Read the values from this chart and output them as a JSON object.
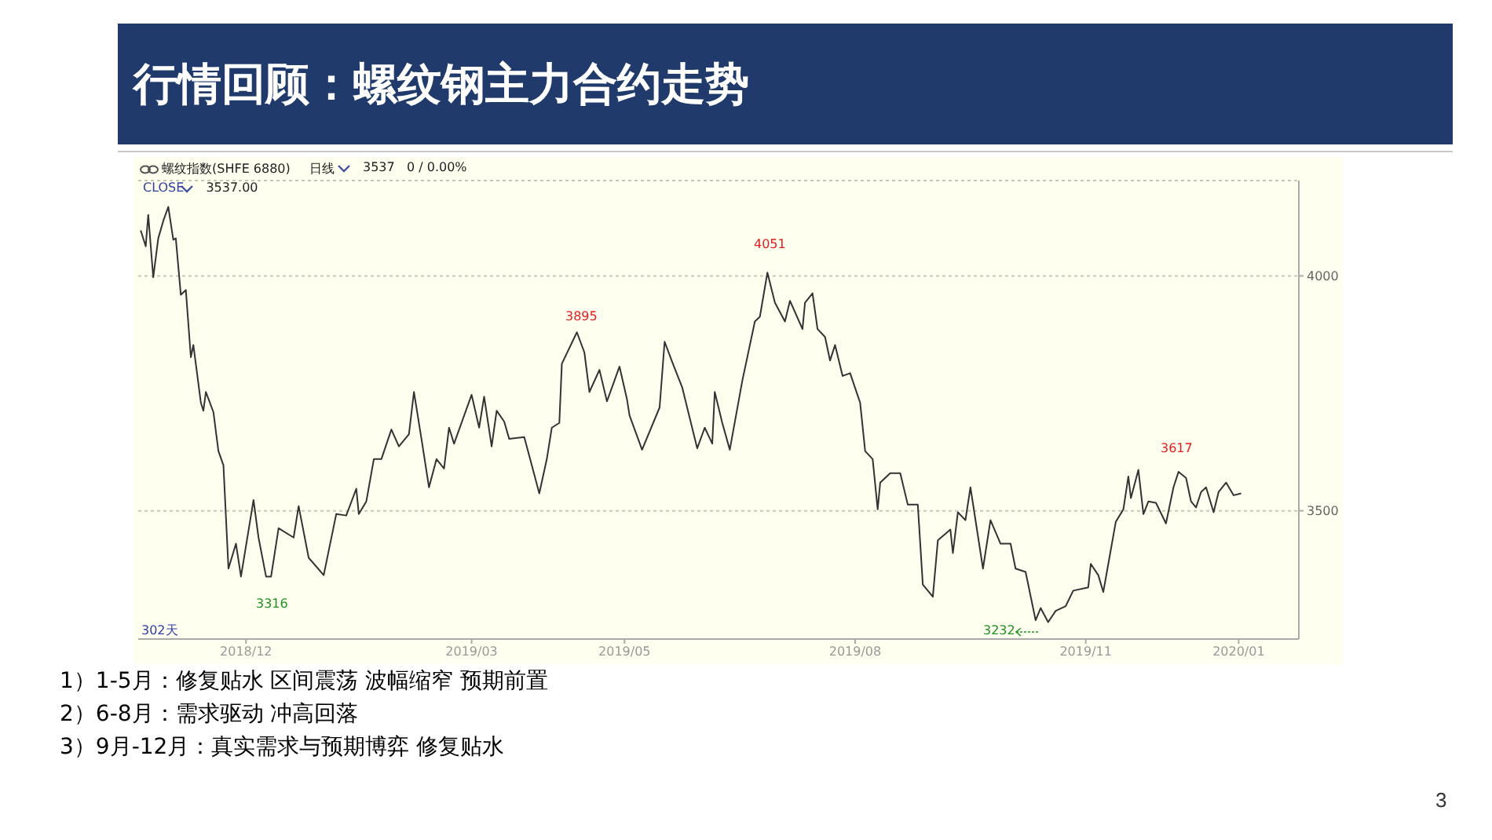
{
  "chart_data": {
    "type": "line",
    "title": "行情回顾：螺纹钢主力合约走势",
    "x": [
      "2018-10-20",
      "2018-10-22",
      "2018-10-23",
      "2018-10-25",
      "2018-10-27",
      "2018-10-29",
      "2018-10-31",
      "2018-11-02",
      "2018-11-03",
      "2018-11-05",
      "2018-11-07",
      "2018-11-09",
      "2018-11-10",
      "2018-11-13",
      "2018-11-14",
      "2018-11-15",
      "2018-11-18",
      "2018-11-20",
      "2018-11-22",
      "2018-11-24",
      "2018-11-27",
      "2018-11-29",
      "2018-12-04",
      "2018-12-06",
      "2018-12-09",
      "2018-12-11",
      "2018-12-14",
      "2018-12-20",
      "2018-12-22",
      "2018-12-26",
      "2019-01-01",
      "2019-01-06",
      "2019-01-10",
      "2019-01-14",
      "2019-01-15",
      "2019-01-18",
      "2019-01-21",
      "2019-01-24",
      "2019-01-28",
      "2019-01-31",
      "2019-02-04",
      "2019-02-06",
      "2019-02-09",
      "2019-02-12",
      "2019-02-15",
      "2019-02-18",
      "2019-02-20",
      "2019-02-22",
      "2019-03-01",
      "2019-03-04",
      "2019-03-06",
      "2019-03-09",
      "2019-03-11",
      "2019-03-14",
      "2019-03-16",
      "2019-03-22",
      "2019-03-25",
      "2019-03-28",
      "2019-03-31",
      "2019-04-02",
      "2019-04-05",
      "2019-04-06",
      "2019-04-12",
      "2019-04-15",
      "2019-04-17",
      "2019-04-21",
      "2019-04-24",
      "2019-04-29",
      "2019-05-02",
      "2019-05-03",
      "2019-05-08",
      "2019-05-15",
      "2019-05-17",
      "2019-05-20",
      "2019-05-24",
      "2019-05-30",
      "2019-06-02",
      "2019-06-05",
      "2019-06-06",
      "2019-06-09",
      "2019-06-12",
      "2019-06-17",
      "2019-06-22",
      "2019-06-24",
      "2019-06-27",
      "2019-06-30",
      "2019-07-04",
      "2019-07-06",
      "2019-07-11",
      "2019-07-12",
      "2019-07-15",
      "2019-07-17",
      "2019-07-20",
      "2019-07-22",
      "2019-07-24",
      "2019-07-27",
      "2019-07-30",
      "2019-08-03",
      "2019-08-05",
      "2019-08-08",
      "2019-08-10",
      "2019-08-11",
      "2019-08-15",
      "2019-08-19",
      "2019-08-22",
      "2019-08-26",
      "2019-08-28",
      "2019-09-01",
      "2019-09-03",
      "2019-09-08",
      "2019-09-09",
      "2019-09-11",
      "2019-09-14",
      "2019-09-16",
      "2019-09-21",
      "2019-09-24",
      "2019-09-28",
      "2019-10-02",
      "2019-10-04",
      "2019-10-08",
      "2019-10-12",
      "2019-10-14",
      "2019-10-17",
      "2019-10-20",
      "2019-10-24",
      "2019-10-27",
      "2019-11-02",
      "2019-11-03",
      "2019-11-06",
      "2019-11-08",
      "2019-11-10",
      "2019-11-13",
      "2019-11-16",
      "2019-11-18",
      "2019-11-19",
      "2019-11-22",
      "2019-11-24",
      "2019-11-26",
      "2019-11-29",
      "2019-12-03",
      "2019-12-06",
      "2019-12-08",
      "2019-12-11",
      "2019-12-13",
      "2019-12-15",
      "2019-12-17",
      "2019-12-19",
      "2019-12-22",
      "2019-12-24",
      "2019-12-27",
      "2019-12-30",
      "2020-01-02"
    ],
    "series": [
      {
        "color": "#333333",
        "values": [
          4097,
          4063,
          4130,
          3997,
          4080,
          4117,
          4147,
          4077,
          4080,
          3960,
          3970,
          3827,
          3853,
          3730,
          3713,
          3753,
          3710,
          3627,
          3597,
          3377,
          3430,
          3360,
          3523,
          3443,
          3360,
          3360,
          3463,
          3443,
          3510,
          3400,
          3363,
          3493,
          3490,
          3547,
          3493,
          3520,
          3610,
          3610,
          3673,
          3637,
          3663,
          3753,
          3653,
          3550,
          3610,
          3590,
          3677,
          3643,
          3747,
          3677,
          3743,
          3637,
          3713,
          3690,
          3653,
          3657,
          3597,
          3537,
          3610,
          3677,
          3687,
          3813,
          3880,
          3837,
          3753,
          3800,
          3733,
          3807,
          3737,
          3703,
          3630,
          3720,
          3860,
          3817,
          3763,
          3633,
          3677,
          3643,
          3753,
          3687,
          3630,
          3777,
          3903,
          3913,
          4007,
          3943,
          3903,
          3947,
          3887,
          3943,
          3963,
          3887,
          3870,
          3820,
          3853,
          3787,
          3793,
          3730,
          3627,
          3610,
          3503,
          3560,
          3580,
          3580,
          3513,
          3513,
          3343,
          3317,
          3437,
          3460,
          3410,
          3497,
          3480,
          3550,
          3377,
          3480,
          3430,
          3430,
          3377,
          3370,
          3267,
          3293,
          3263,
          3287,
          3297,
          3330,
          3337,
          3387,
          3363,
          3327,
          3387,
          3477,
          3503,
          3573,
          3527,
          3587,
          3493,
          3520,
          3517,
          3473,
          3550,
          3583,
          3570,
          3520,
          3507,
          3540,
          3550,
          3497,
          3540,
          3560,
          3533,
          3537
        ]
      }
    ],
    "xlim": [
      "2018-10-19",
      "2020-01-25"
    ],
    "xticks": [
      {
        "value": "2018-12-01",
        "label": "2018/12"
      },
      {
        "value": "2019-03-01",
        "label": "2019/03"
      },
      {
        "value": "2019-05-01",
        "label": "2019/05"
      },
      {
        "value": "2019-08-01",
        "label": "2019/08"
      },
      {
        "value": "2019-11-01",
        "label": "2019/11"
      },
      {
        "value": "2020-01-01",
        "label": "2020/01"
      }
    ],
    "ylim": [
      3227,
      4203
    ],
    "yticks": [
      3500,
      4000
    ],
    "grid": "y",
    "marker": "none",
    "line_style": "solid",
    "annotations": [
      "螺纹指数(SHFE 6880)",
      "日线",
      "3537",
      "0 / 0.00%",
      "CLOSE",
      "3537.00",
      "302天",
      "3895",
      "4051",
      "3617",
      "3316",
      "3232",
      "1）1-5月：修复贴水 区间震荡 波幅缩窄 预期前置",
      "2）6-8月：需求驱动 冲高回落",
      "3）9月-12月：真实需求与预期博弈 修复贴水",
      "3"
    ]
  }
}
